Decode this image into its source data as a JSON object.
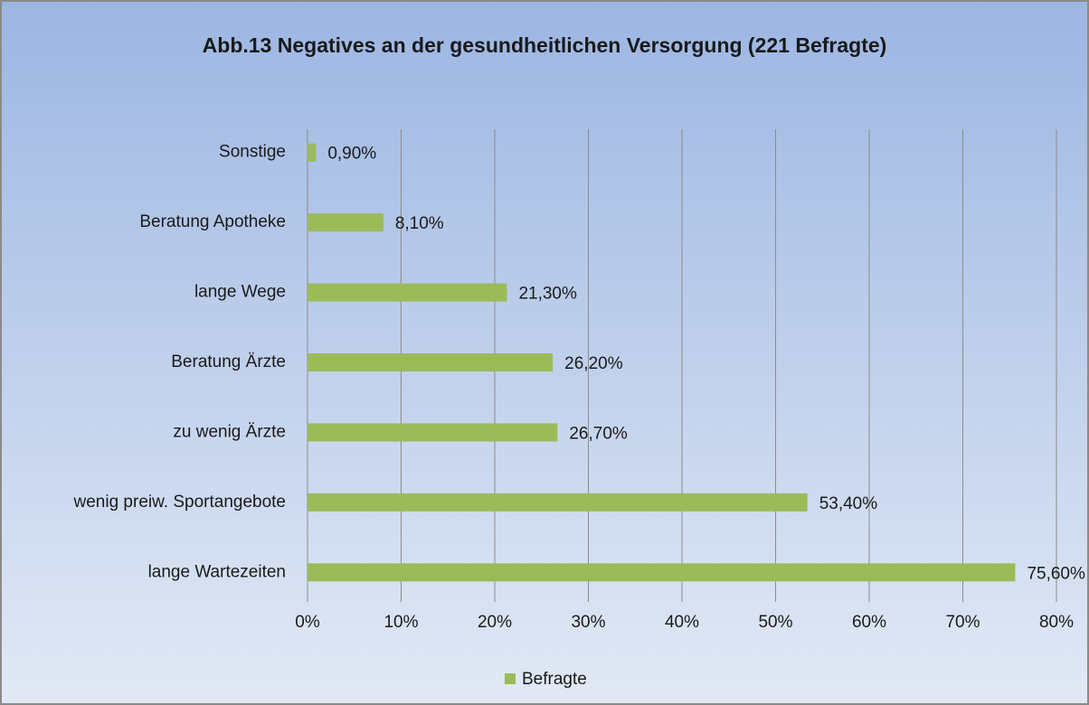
{
  "chart_data": {
    "type": "barh",
    "title": "Abb.13 Negatives an der gesundheitlichen Versorgung (221 Befragte)",
    "categories": [
      "Sonstige",
      "Beratung Apotheke",
      "lange Wege",
      "Beratung Ärzte",
      "zu wenig Ärzte",
      "wenig preiw. Sportangebote",
      "lange Wartezeiten"
    ],
    "series": [
      {
        "name": "Befragte",
        "color": "#9bbb59",
        "values": [
          0.9,
          8.1,
          21.3,
          26.2,
          26.7,
          53.4,
          75.6
        ],
        "value_labels": [
          "0,90%",
          "8,10%",
          "21,30%",
          "26,20%",
          "26,70%",
          "53,40%",
          "75,60%"
        ]
      }
    ],
    "xlim": [
      0,
      80
    ],
    "xticks": [
      {
        "value": 0,
        "label": "0%"
      },
      {
        "value": 10,
        "label": "10%"
      },
      {
        "value": 20,
        "label": "20%"
      },
      {
        "value": 30,
        "label": "30%"
      },
      {
        "value": 40,
        "label": "40%"
      },
      {
        "value": 50,
        "label": "50%"
      },
      {
        "value": 60,
        "label": "60%"
      },
      {
        "value": 70,
        "label": "70%"
      },
      {
        "value": 80,
        "label": "80%"
      }
    ],
    "grid": true,
    "legend": "bottom"
  }
}
